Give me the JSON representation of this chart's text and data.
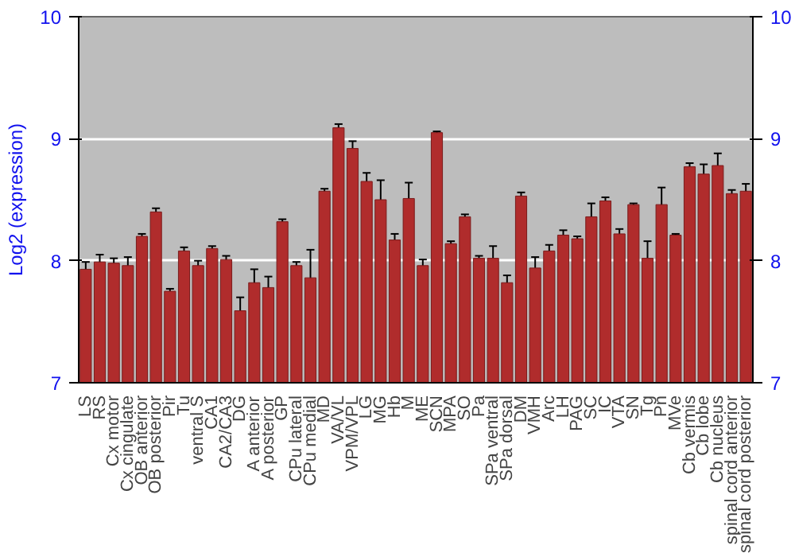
{
  "chart_data": {
    "type": "bar",
    "ylabel": "Log2 (expression)",
    "categories": [
      "LS",
      "RS",
      "Cx motor",
      "Cx cingulate",
      "OB anterior",
      "OB posterior",
      "Pir",
      "Tu",
      "ventral S",
      "CA1",
      "CA2/CA3",
      "DG",
      "A anterior",
      "A posterior",
      "GP",
      "CPu lateral",
      "CPu medial",
      "MD",
      "VA/VL",
      "VPM/VPL",
      "LG",
      "MG",
      "Hb",
      "M",
      "ME",
      "SCN",
      "MPA",
      "SO",
      "Pa",
      "SPa ventral",
      "SPa dorsal",
      "DM",
      "VMH",
      "Arc",
      "LH",
      "PAG",
      "SC",
      "IC",
      "VTA",
      "SN",
      "Tg",
      "Pn",
      "MVe",
      "Cb vermis",
      "Cb lobe",
      "Cb nucleus",
      "spinal cord anterior",
      "spinal cord posterior"
    ],
    "values": [
      7.93,
      7.99,
      7.98,
      7.96,
      8.2,
      8.4,
      7.75,
      8.08,
      7.96,
      8.1,
      8.01,
      7.59,
      7.82,
      7.78,
      8.32,
      7.96,
      7.86,
      8.57,
      9.09,
      8.92,
      8.65,
      8.5,
      8.17,
      8.51,
      7.96,
      9.05,
      8.14,
      8.36,
      8.02,
      8.02,
      7.82,
      8.53,
      7.94,
      8.08,
      8.21,
      8.18,
      8.36,
      8.49,
      8.22,
      8.46,
      8.02,
      8.46,
      8.21,
      8.77,
      8.71,
      8.78,
      8.55,
      8.57
    ],
    "errors": [
      0.06,
      0.06,
      0.04,
      0.07,
      0.02,
      0.03,
      0.02,
      0.03,
      0.04,
      0.02,
      0.03,
      0.11,
      0.11,
      0.09,
      0.02,
      0.03,
      0.23,
      0.02,
      0.03,
      0.06,
      0.07,
      0.16,
      0.05,
      0.13,
      0.05,
      0.01,
      0.02,
      0.02,
      0.02,
      0.1,
      0.06,
      0.03,
      0.09,
      0.05,
      0.04,
      0.02,
      0.11,
      0.03,
      0.04,
      0.01,
      0.14,
      0.14,
      0.01,
      0.03,
      0.08,
      0.1,
      0.03,
      0.06
    ],
    "color": "#b02c2c",
    "ylim": [
      7,
      10
    ],
    "yticks": [
      7,
      8,
      9,
      10
    ],
    "y2lim": [
      7,
      10
    ],
    "y2ticks": [
      7,
      8,
      9,
      10
    ],
    "grid": "y"
  }
}
